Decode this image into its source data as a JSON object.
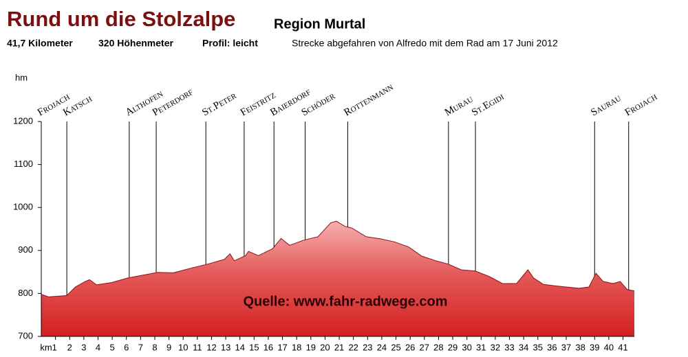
{
  "chart_data": {
    "type": "area",
    "title": "Rund um die Stolzalpe",
    "subtitle": "Region Murtal",
    "stats": [
      "41,7 Kilometer",
      "320 Höhenmeter",
      "Profil: leicht"
    ],
    "note": "Strecke abgefahren von Alfredo mit dem Rad am 17 Juni 2012",
    "y_label": "hm",
    "watermark": "Quelle: www.fahr-radwege.com",
    "color": "#d42020",
    "x": [
      0,
      0.5,
      1.8,
      2.4,
      3.1,
      3.4,
      3.9,
      4.9,
      6.1,
      8.2,
      9.3,
      10.7,
      11.7,
      12.9,
      13.3,
      13.6,
      14.4,
      14.6,
      15.3,
      16.3,
      16.9,
      17.5,
      18.5,
      19.5,
      20.4,
      20.8,
      21.4,
      21.9,
      22.9,
      23.9,
      24.9,
      25.9,
      26.8,
      27.8,
      28.7,
      29.6,
      30.6,
      31.6,
      32.5,
      33.5,
      34.3,
      34.7,
      35.4,
      36.4,
      37.9,
      38.6,
      39.1,
      39.6,
      40.3,
      40.8,
      41.3,
      41.8
    ],
    "values": [
      798,
      792,
      795,
      815,
      828,
      832,
      820,
      825,
      836,
      849,
      848,
      860,
      868,
      879,
      892,
      876,
      888,
      898,
      888,
      904,
      928,
      912,
      924,
      932,
      964,
      968,
      956,
      952,
      932,
      927,
      920,
      908,
      887,
      876,
      868,
      855,
      852,
      839,
      823,
      823,
      855,
      836,
      821,
      817,
      812,
      815,
      847,
      828,
      823,
      828,
      809,
      806
    ],
    "places": [
      {
        "name": "Frojach",
        "km": 0.0
      },
      {
        "name": "Katsch",
        "km": 1.8
      },
      {
        "name": "Althofen",
        "km": 6.2
      },
      {
        "name": "Peterdorf",
        "km": 8.1
      },
      {
        "name": "St.Peter",
        "km": 11.6
      },
      {
        "name": "Feistritz",
        "km": 14.3
      },
      {
        "name": "Baierdorf",
        "km": 16.4
      },
      {
        "name": "Schöder",
        "km": 18.6
      },
      {
        "name": "Rottenmann",
        "km": 21.6
      },
      {
        "name": "Murau",
        "km": 28.7
      },
      {
        "name": "St.Egidi",
        "km": 30.6
      },
      {
        "name": "Saurau",
        "km": 39.0
      },
      {
        "name": "Frojach",
        "km": 41.4
      }
    ],
    "xlim": [
      0,
      41.8
    ],
    "xticks": [
      {
        "value": 1,
        "label": "km1"
      },
      2,
      3,
      4,
      5,
      6,
      7,
      8,
      9,
      10,
      11,
      12,
      13,
      14,
      15,
      16,
      17,
      18,
      19,
      20,
      21,
      22,
      23,
      24,
      25,
      26,
      27,
      28,
      29,
      30,
      31,
      32,
      33,
      34,
      35,
      36,
      37,
      38,
      39,
      40,
      41
    ],
    "ylim": [
      700,
      1200
    ],
    "yticks": [
      700,
      800,
      900,
      1000,
      1100,
      1200
    ],
    "grid": false
  }
}
